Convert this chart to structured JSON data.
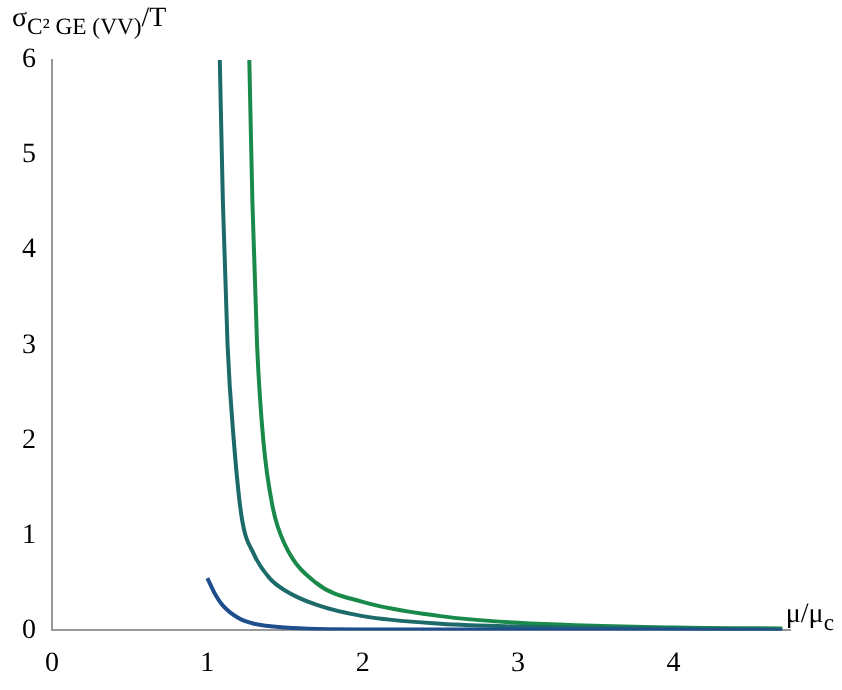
{
  "chart_data": {
    "type": "line",
    "xlabel": "μ/μ$_{c}$",
    "ylabel": "σ$_{C² GE (VV)}$/T",
    "xlim": [
      0,
      4.75
    ],
    "xticks": [
      0,
      1,
      2,
      3,
      4
    ],
    "ylim": [
      0,
      6
    ],
    "yticks": [
      0,
      1,
      2,
      3,
      4,
      5,
      6
    ],
    "grid": false,
    "legend": false,
    "marker": "none",
    "line_style": "solid",
    "series": [
      {
        "color": "#1f4e8c",
        "x": [
          1,
          1.05,
          1.1,
          1.2,
          1.3,
          1.5,
          2,
          3,
          4.7
        ],
        "values": [
          0.55,
          0.38,
          0.26,
          0.13,
          0.07,
          0.03,
          0.01,
          0.01,
          0
        ]
      },
      {
        "color": "#1d6a6a",
        "x": [
          1.08,
          1.1,
          1.13,
          1.17,
          1.22,
          1.3,
          1.4,
          1.5,
          1.7,
          2,
          2.5,
          3,
          4,
          4.7
        ],
        "values": [
          6,
          4.5,
          3,
          2,
          1.2,
          0.8,
          0.55,
          0.42,
          0.27,
          0.15,
          0.07,
          0.04,
          0.02,
          0.01
        ]
      },
      {
        "color": "#1a8a4a",
        "x": [
          1.27,
          1.29,
          1.32,
          1.36,
          1.42,
          1.5,
          1.7,
          2,
          2.5,
          3,
          4,
          4.7
        ],
        "values": [
          6,
          4.5,
          3,
          2,
          1.3,
          0.9,
          0.5,
          0.3,
          0.15,
          0.08,
          0.03,
          0.02
        ]
      }
    ]
  }
}
